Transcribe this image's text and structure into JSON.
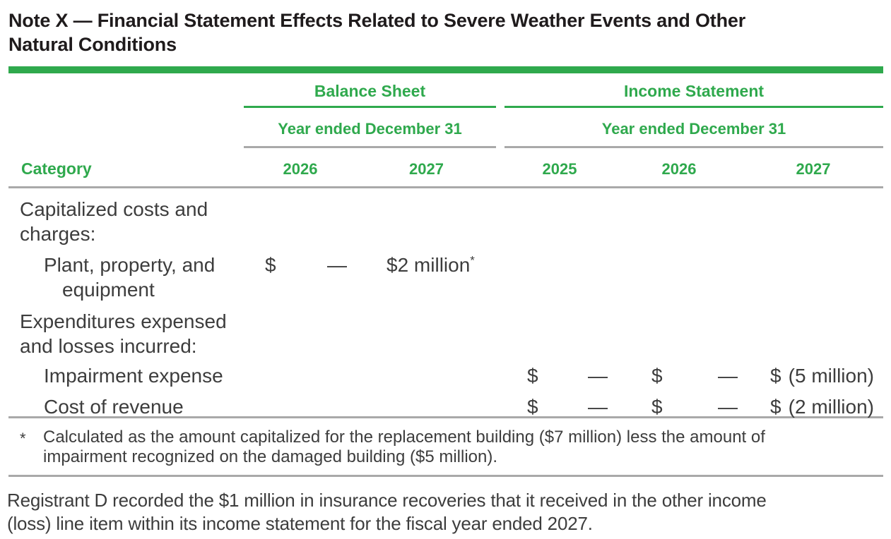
{
  "colors": {
    "green": "#2fa94d",
    "rule_gray": "#a9a9a9",
    "body_text": "#3d3d3d",
    "title_text": "#1f1b1c"
  },
  "title": {
    "line1": "Note X — Financial Statement Effects Related to Severe Weather Events and Other",
    "line2": "Natural Conditions"
  },
  "table": {
    "category_header": "Category",
    "balance_sheet": {
      "title": "Balance Sheet",
      "period": "Year ended December 31",
      "years": [
        "2026",
        "2027"
      ]
    },
    "income_statement": {
      "title": "Income Statement",
      "period": "Year ended December 31",
      "years": [
        "2025",
        "2026",
        "2027"
      ]
    },
    "rows": [
      {
        "label_line1": "Capitalized costs and",
        "label_line2": "charges:"
      },
      {
        "label_line1": "Plant, property, and",
        "label_line2": "equipment",
        "bs_2026_currency": "$",
        "bs_2026_amount": "—",
        "bs_2027_currency": "$",
        "bs_2027_amount": "2 million",
        "bs_2027_footnote": "*"
      },
      {
        "label_line1": "Expenditures expensed",
        "label_line2": "and losses incurred:"
      },
      {
        "label_line1": "Impairment expense",
        "is_2025_currency": "$",
        "is_2025_amount": "—",
        "is_2026_currency": "$",
        "is_2026_amount": "—",
        "is_2027_currency": "$",
        "is_2027_amount": "(5 million)"
      },
      {
        "label_line1": "Cost of revenue",
        "is_2025_currency": "$",
        "is_2025_amount": "—",
        "is_2026_currency": "$",
        "is_2026_amount": "—",
        "is_2027_currency": "$",
        "is_2027_amount": "(2 million)"
      }
    ]
  },
  "footnote": {
    "marker": "*",
    "line1": "Calculated as the amount capitalized for the replacement building ($7 million) less the amount of",
    "line2": "impairment recognized on the damaged building ($5 million)."
  },
  "paragraph": {
    "line1": "Registrant D recorded the $1 million in insurance recoveries that it received in the other income",
    "line2": "(loss) line item within its income statement for the fiscal year ended 2027."
  }
}
